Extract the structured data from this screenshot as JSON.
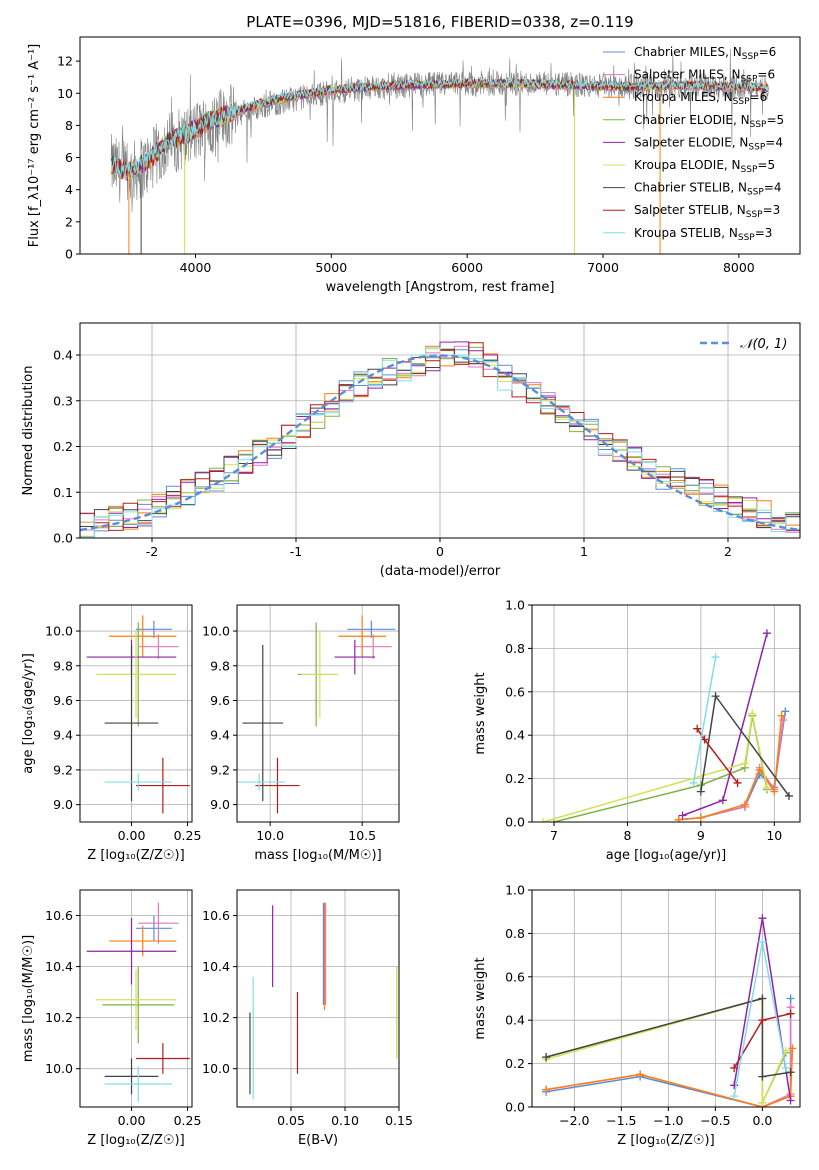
{
  "colors": {
    "Chabrier MILES": "#5a8ed8",
    "Salpeter MILES": "#e377c2",
    "Kroupa MILES": "#ff7f0e",
    "Chabrier ELODIE": "#7cb342",
    "Salpeter ELODIE": "#8e24aa",
    "Kroupa ELODIE": "#d4e157",
    "Chabrier STELIB": "#444444",
    "Salpeter STELIB": "#b71c1c",
    "Kroupa STELIB": "#80deea"
  },
  "chart_data": [
    {
      "type": "line",
      "title": "PLATE=0396, MJD=51816, FIBERID=0338, z=0.119",
      "xlabel": "wavelength [Angstrom, rest frame]",
      "ylabel": "Flux [f_λ10⁻¹⁷ erg cm⁻² s⁻¹ A⁻¹]",
      "xlim": [
        3150,
        8450
      ],
      "ylim": [
        0,
        13.5
      ],
      "xticks": [
        4000,
        5000,
        6000,
        7000,
        8000
      ],
      "yticks": [
        0,
        2,
        4,
        6,
        8,
        10,
        12
      ],
      "legend": "upper-right",
      "legend_entries": [
        {
          "model": "Chabrier MILES",
          "label": "Chabrier MILES, N",
          "sub": "SSP",
          "n": "=6"
        },
        {
          "model": "Salpeter MILES",
          "label": "Salpeter MILES, N",
          "sub": "SSP",
          "n": "=6"
        },
        {
          "model": "Kroupa MILES",
          "label": "Kroupa MILES, N",
          "sub": "SSP",
          "n": "=6"
        },
        {
          "model": "Chabrier ELODIE",
          "label": "Chabrier ELODIE, N",
          "sub": "SSP",
          "n": "=5"
        },
        {
          "model": "Salpeter ELODIE",
          "label": "Salpeter ELODIE, N",
          "sub": "SSP",
          "n": "=4"
        },
        {
          "model": "Kroupa ELODIE",
          "label": "Kroupa ELODIE, N",
          "sub": "SSP",
          "n": "=5"
        },
        {
          "model": "Chabrier STELIB",
          "label": "Chabrier STELIB, N",
          "sub": "SSP",
          "n": "=4"
        },
        {
          "model": "Salpeter STELIB",
          "label": "Salpeter STELIB, N",
          "sub": "SSP",
          "n": "=3"
        },
        {
          "model": "Kroupa STELIB",
          "label": "Kroupa STELIB, N",
          "sub": "SSP",
          "n": "=3"
        }
      ],
      "data_trend": {
        "x": [
          3380,
          3500,
          3650,
          3800,
          3950,
          4100,
          4300,
          4500,
          4700,
          5000,
          5300,
          5600,
          6000,
          6400,
          6800,
          7200,
          7600,
          8000,
          8220
        ],
        "y": [
          5.5,
          4.9,
          5.6,
          6.9,
          7.3,
          8.1,
          8.7,
          9.2,
          9.6,
          10.1,
          10.3,
          10.5,
          10.6,
          10.6,
          10.5,
          10.4,
          10.5,
          10.4,
          10.3
        ]
      },
      "model_trend": {
        "x": [
          3380,
          3500,
          3650,
          3800,
          3950,
          4100,
          4300,
          4500,
          4700,
          5000,
          5300,
          5600,
          6000,
          6400,
          6800,
          7200,
          7600,
          8000,
          8220
        ],
        "y": [
          5.6,
          5.1,
          5.8,
          7.0,
          7.5,
          8.3,
          8.9,
          9.4,
          9.8,
          10.2,
          10.4,
          10.5,
          10.6,
          10.6,
          10.5,
          10.4,
          10.5,
          10.4,
          10.3
        ]
      }
    },
    {
      "type": "line",
      "xlabel": "(data-model)/error",
      "ylabel": "Normed distribution",
      "xlim": [
        -2.5,
        2.5
      ],
      "ylim": [
        0,
        0.47
      ],
      "xticks": [
        -2,
        -1,
        0,
        1,
        2
      ],
      "yticks": [
        0.0,
        0.1,
        0.2,
        0.3,
        0.4
      ],
      "legend": "upper-right",
      "legend_entry": "𝒩(0, 1)",
      "gaussian_color": "#5a8ed8",
      "histogram_bin_width": 0.1,
      "histogram_envelope": {
        "x": [
          -2.45,
          -2.0,
          -1.5,
          -1.0,
          -0.5,
          0.0,
          0.2,
          0.5,
          1.0,
          1.5,
          2.0,
          2.45
        ],
        "y": [
          0.025,
          0.06,
          0.14,
          0.23,
          0.35,
          0.395,
          0.41,
          0.34,
          0.24,
          0.14,
          0.08,
          0.03
        ]
      }
    },
    {
      "type": "scatter",
      "xlabel": "Z [log₁₀(Z/Z☉)]",
      "ylabel": "age  [log₁₀(age/yr)]",
      "xlim": [
        -0.23,
        0.27
      ],
      "ylim": [
        8.9,
        10.15
      ],
      "xticks": [
        0.0,
        0.25
      ],
      "xtick_labels": [
        "0.00",
        "0.25"
      ],
      "yticks": [
        9.0,
        9.2,
        9.4,
        9.6,
        9.8,
        10.0
      ],
      "points": [
        {
          "model": "Chabrier MILES",
          "x": 0.1,
          "y": 10.01,
          "xerr": 0.08,
          "yerr": 0.05
        },
        {
          "model": "Salpeter MILES",
          "x": 0.12,
          "y": 9.91,
          "xerr": 0.09,
          "yerr": 0.07
        },
        {
          "model": "Kroupa MILES",
          "x": 0.05,
          "y": 9.97,
          "xerr": 0.15,
          "yerr": 0.12
        },
        {
          "model": "Chabrier ELODIE",
          "x": 0.03,
          "y": 9.75,
          "xerr": 0.16,
          "yerr": 0.3
        },
        {
          "model": "Salpeter ELODIE",
          "x": 0.0,
          "y": 9.85,
          "xerr": 0.2,
          "yerr": 0.1
        },
        {
          "model": "Kroupa ELODIE",
          "x": 0.02,
          "y": 9.75,
          "xerr": 0.18,
          "yerr": 0.25
        },
        {
          "model": "Chabrier STELIB",
          "x": 0.0,
          "y": 9.47,
          "xerr": 0.12,
          "yerr": 0.45
        },
        {
          "model": "Salpeter STELIB",
          "x": 0.14,
          "y": 9.11,
          "xerr": 0.12,
          "yerr": 0.16
        },
        {
          "model": "Kroupa STELIB",
          "x": 0.03,
          "y": 9.13,
          "xerr": 0.15,
          "yerr": 0.05
        }
      ]
    },
    {
      "type": "scatter",
      "xlabel": "mass [log₁₀(M/M☉)]",
      "xlim": [
        9.82,
        10.7
      ],
      "ylim": [
        8.9,
        10.15
      ],
      "xticks": [
        10.0,
        10.5
      ],
      "xtick_labels": [
        "10.0",
        "10.5"
      ],
      "yticks": [
        9.0,
        9.2,
        9.4,
        9.6,
        9.8,
        10.0
      ],
      "points": [
        {
          "model": "Chabrier MILES",
          "x": 10.55,
          "y": 10.01,
          "xerr": 0.13,
          "yerr": 0.05
        },
        {
          "model": "Salpeter MILES",
          "x": 10.56,
          "y": 9.91,
          "xerr": 0.1,
          "yerr": 0.07
        },
        {
          "model": "Kroupa MILES",
          "x": 10.5,
          "y": 9.97,
          "xerr": 0.13,
          "yerr": 0.12
        },
        {
          "model": "Chabrier ELODIE",
          "x": 10.25,
          "y": 9.75,
          "xerr": 0.1,
          "yerr": 0.3
        },
        {
          "model": "Salpeter ELODIE",
          "x": 10.46,
          "y": 9.85,
          "xerr": 0.11,
          "yerr": 0.1
        },
        {
          "model": "Kroupa ELODIE",
          "x": 10.27,
          "y": 9.75,
          "xerr": 0.1,
          "yerr": 0.25
        },
        {
          "model": "Chabrier STELIB",
          "x": 9.96,
          "y": 9.47,
          "xerr": 0.11,
          "yerr": 0.45
        },
        {
          "model": "Salpeter STELIB",
          "x": 10.04,
          "y": 9.11,
          "xerr": 0.12,
          "yerr": 0.16
        },
        {
          "model": "Kroupa STELIB",
          "x": 9.94,
          "y": 9.13,
          "xerr": 0.14,
          "yerr": 0.05
        }
      ]
    },
    {
      "type": "line",
      "xlabel": "age  [log₁₀(age/yr)]",
      "ylabel": "mass weight",
      "xlim": [
        6.7,
        10.35
      ],
      "ylim": [
        0,
        1.0
      ],
      "xticks": [
        7,
        8,
        9,
        10
      ],
      "yticks": [
        0.0,
        0.2,
        0.4,
        0.6,
        0.8,
        1.0
      ],
      "series": [
        {
          "model": "Chabrier MILES",
          "x": [
            8.7,
            9.0,
            9.6,
            9.8,
            10.0,
            10.15
          ],
          "y": [
            0.01,
            0.02,
            0.07,
            0.22,
            0.16,
            0.51
          ]
        },
        {
          "model": "Salpeter MILES",
          "x": [
            8.7,
            9.0,
            9.6,
            9.8,
            10.0,
            10.12
          ],
          "y": [
            0.01,
            0.02,
            0.07,
            0.25,
            0.15,
            0.47
          ]
        },
        {
          "model": "Kroupa MILES",
          "x": [
            8.7,
            9.0,
            9.6,
            9.8,
            10.0,
            10.1
          ],
          "y": [
            0.01,
            0.02,
            0.08,
            0.24,
            0.14,
            0.49
          ]
        },
        {
          "model": "Chabrier ELODIE",
          "x": [
            7.0,
            9.0,
            9.6,
            9.7,
            9.9
          ],
          "y": [
            0.0,
            0.17,
            0.25,
            0.49,
            0.15
          ]
        },
        {
          "model": "Salpeter ELODIE",
          "x": [
            8.75,
            9.3,
            9.9
          ],
          "y": [
            0.03,
            0.1,
            0.87
          ]
        },
        {
          "model": "Kroupa ELODIE",
          "x": [
            6.85,
            9.6,
            9.7,
            9.9
          ],
          "y": [
            0.0,
            0.27,
            0.5,
            0.16
          ]
        },
        {
          "model": "Chabrier STELIB",
          "x": [
            9.0,
            9.2,
            10.2
          ],
          "y": [
            0.14,
            0.58,
            0.12
          ]
        },
        {
          "model": "Salpeter STELIB",
          "x": [
            8.95,
            9.05,
            9.5
          ],
          "y": [
            0.43,
            0.38,
            0.18
          ]
        },
        {
          "model": "Kroupa STELIB",
          "x": [
            8.9,
            9.2
          ],
          "y": [
            0.18,
            0.76
          ]
        }
      ]
    },
    {
      "type": "scatter",
      "xlabel": "Z [log₁₀(Z/Z☉)]",
      "ylabel": "mass [log₁₀(M/M☉)]",
      "xlim": [
        -0.23,
        0.27
      ],
      "ylim": [
        9.85,
        10.7
      ],
      "xticks": [
        0.0,
        0.25
      ],
      "xtick_labels": [
        "0.00",
        "0.25"
      ],
      "yticks": [
        10.0,
        10.2,
        10.4,
        10.6
      ],
      "points": [
        {
          "model": "Chabrier MILES",
          "x": 0.1,
          "y": 10.55,
          "xerr": 0.08,
          "yerr": 0.05
        },
        {
          "model": "Salpeter MILES",
          "x": 0.12,
          "y": 10.57,
          "xerr": 0.09,
          "yerr": 0.08
        },
        {
          "model": "Kroupa MILES",
          "x": 0.05,
          "y": 10.5,
          "xerr": 0.15,
          "yerr": 0.06
        },
        {
          "model": "Chabrier ELODIE",
          "x": 0.03,
          "y": 10.25,
          "xerr": 0.16,
          "yerr": 0.15
        },
        {
          "model": "Salpeter ELODIE",
          "x": 0.0,
          "y": 10.46,
          "xerr": 0.2,
          "yerr": 0.13
        },
        {
          "model": "Kroupa ELODIE",
          "x": 0.02,
          "y": 10.27,
          "xerr": 0.18,
          "yerr": 0.12
        },
        {
          "model": "Chabrier STELIB",
          "x": 0.0,
          "y": 9.97,
          "xerr": 0.12,
          "yerr": 0.07
        },
        {
          "model": "Salpeter STELIB",
          "x": 0.14,
          "y": 10.04,
          "xerr": 0.12,
          "yerr": 0.06
        },
        {
          "model": "Kroupa STELIB",
          "x": 0.03,
          "y": 9.94,
          "xerr": 0.15,
          "yerr": 0.07
        }
      ]
    },
    {
      "type": "scatter",
      "xlabel": "E(B-V)",
      "xlim": [
        0.0,
        0.15
      ],
      "ylim": [
        9.85,
        10.7
      ],
      "xticks": [
        0.05,
        0.1,
        0.15
      ],
      "xtick_labels": [
        "0.05",
        "0.10",
        "0.15"
      ],
      "yticks": [
        10.0,
        10.2,
        10.4,
        10.6
      ],
      "points": [
        {
          "model": "Chabrier MILES",
          "x": 0.08,
          "y": 10.45,
          "yerr": 0.2
        },
        {
          "model": "Salpeter MILES",
          "x": 0.082,
          "y": 10.45,
          "yerr": 0.2
        },
        {
          "model": "Kroupa MILES",
          "x": 0.081,
          "y": 10.44,
          "yerr": 0.21
        },
        {
          "model": "Chabrier ELODIE",
          "x": 0.148,
          "y": 10.22,
          "yerr": 0.18
        },
        {
          "model": "Salpeter ELODIE",
          "x": 0.033,
          "y": 10.48,
          "yerr": 0.16
        },
        {
          "model": "Kroupa ELODIE",
          "x": 0.148,
          "y": 10.22,
          "yerr": 0.18
        },
        {
          "model": "Chabrier STELIB",
          "x": 0.012,
          "y": 10.06,
          "yerr": 0.16
        },
        {
          "model": "Salpeter STELIB",
          "x": 0.056,
          "y": 10.14,
          "yerr": 0.16
        },
        {
          "model": "Kroupa STELIB",
          "x": 0.015,
          "y": 10.12,
          "yerr": 0.24
        }
      ]
    },
    {
      "type": "line",
      "xlabel": "Z [log₁₀(Z/Z☉)]",
      "ylabel": "mass weight",
      "xlim": [
        -2.45,
        0.4
      ],
      "ylim": [
        0,
        1.0
      ],
      "xticks": [
        -2.0,
        -1.5,
        -1.0,
        -0.5,
        0.0
      ],
      "xtick_labels": [
        "−2.0",
        "−1.5",
        "−1.0",
        "−0.5",
        "0.0"
      ],
      "yticks": [
        0.0,
        0.2,
        0.4,
        0.6,
        0.8,
        1.0
      ],
      "series": [
        {
          "model": "Chabrier MILES",
          "x": [
            -2.3,
            -1.3,
            0.0,
            0.3,
            0.3
          ],
          "y": [
            0.07,
            0.14,
            0.0,
            0.05,
            0.5
          ]
        },
        {
          "model": "Salpeter MILES",
          "x": [
            -2.3,
            -1.3,
            0.0,
            0.3,
            0.3
          ],
          "y": [
            0.08,
            0.15,
            0.0,
            0.06,
            0.46
          ]
        },
        {
          "model": "Kroupa MILES",
          "x": [
            -2.3,
            -1.3,
            0.0,
            0.3,
            0.32
          ],
          "y": [
            0.08,
            0.15,
            0.0,
            0.05,
            0.27
          ]
        },
        {
          "model": "Chabrier ELODIE",
          "x": [
            -2.3,
            0.0,
            0.0,
            0.25
          ],
          "y": [
            0.23,
            0.5,
            0.02,
            0.25
          ]
        },
        {
          "model": "Salpeter ELODIE",
          "x": [
            -0.3,
            0.0,
            0.3
          ],
          "y": [
            0.1,
            0.87,
            0.03
          ]
        },
        {
          "model": "Kroupa ELODIE",
          "x": [
            -2.3,
            0.0,
            0.0,
            0.25
          ],
          "y": [
            0.22,
            0.5,
            0.02,
            0.26
          ]
        },
        {
          "model": "Chabrier STELIB",
          "x": [
            -2.3,
            0.0,
            0.0,
            0.3
          ],
          "y": [
            0.23,
            0.5,
            0.14,
            0.16
          ]
        },
        {
          "model": "Salpeter STELIB",
          "x": [
            -0.3,
            0.0,
            0.3
          ],
          "y": [
            0.18,
            0.4,
            0.43
          ]
        },
        {
          "model": "Kroupa STELIB",
          "x": [
            -0.3,
            0.0,
            0.25
          ],
          "y": [
            0.05,
            0.76,
            0.18
          ]
        }
      ]
    }
  ]
}
